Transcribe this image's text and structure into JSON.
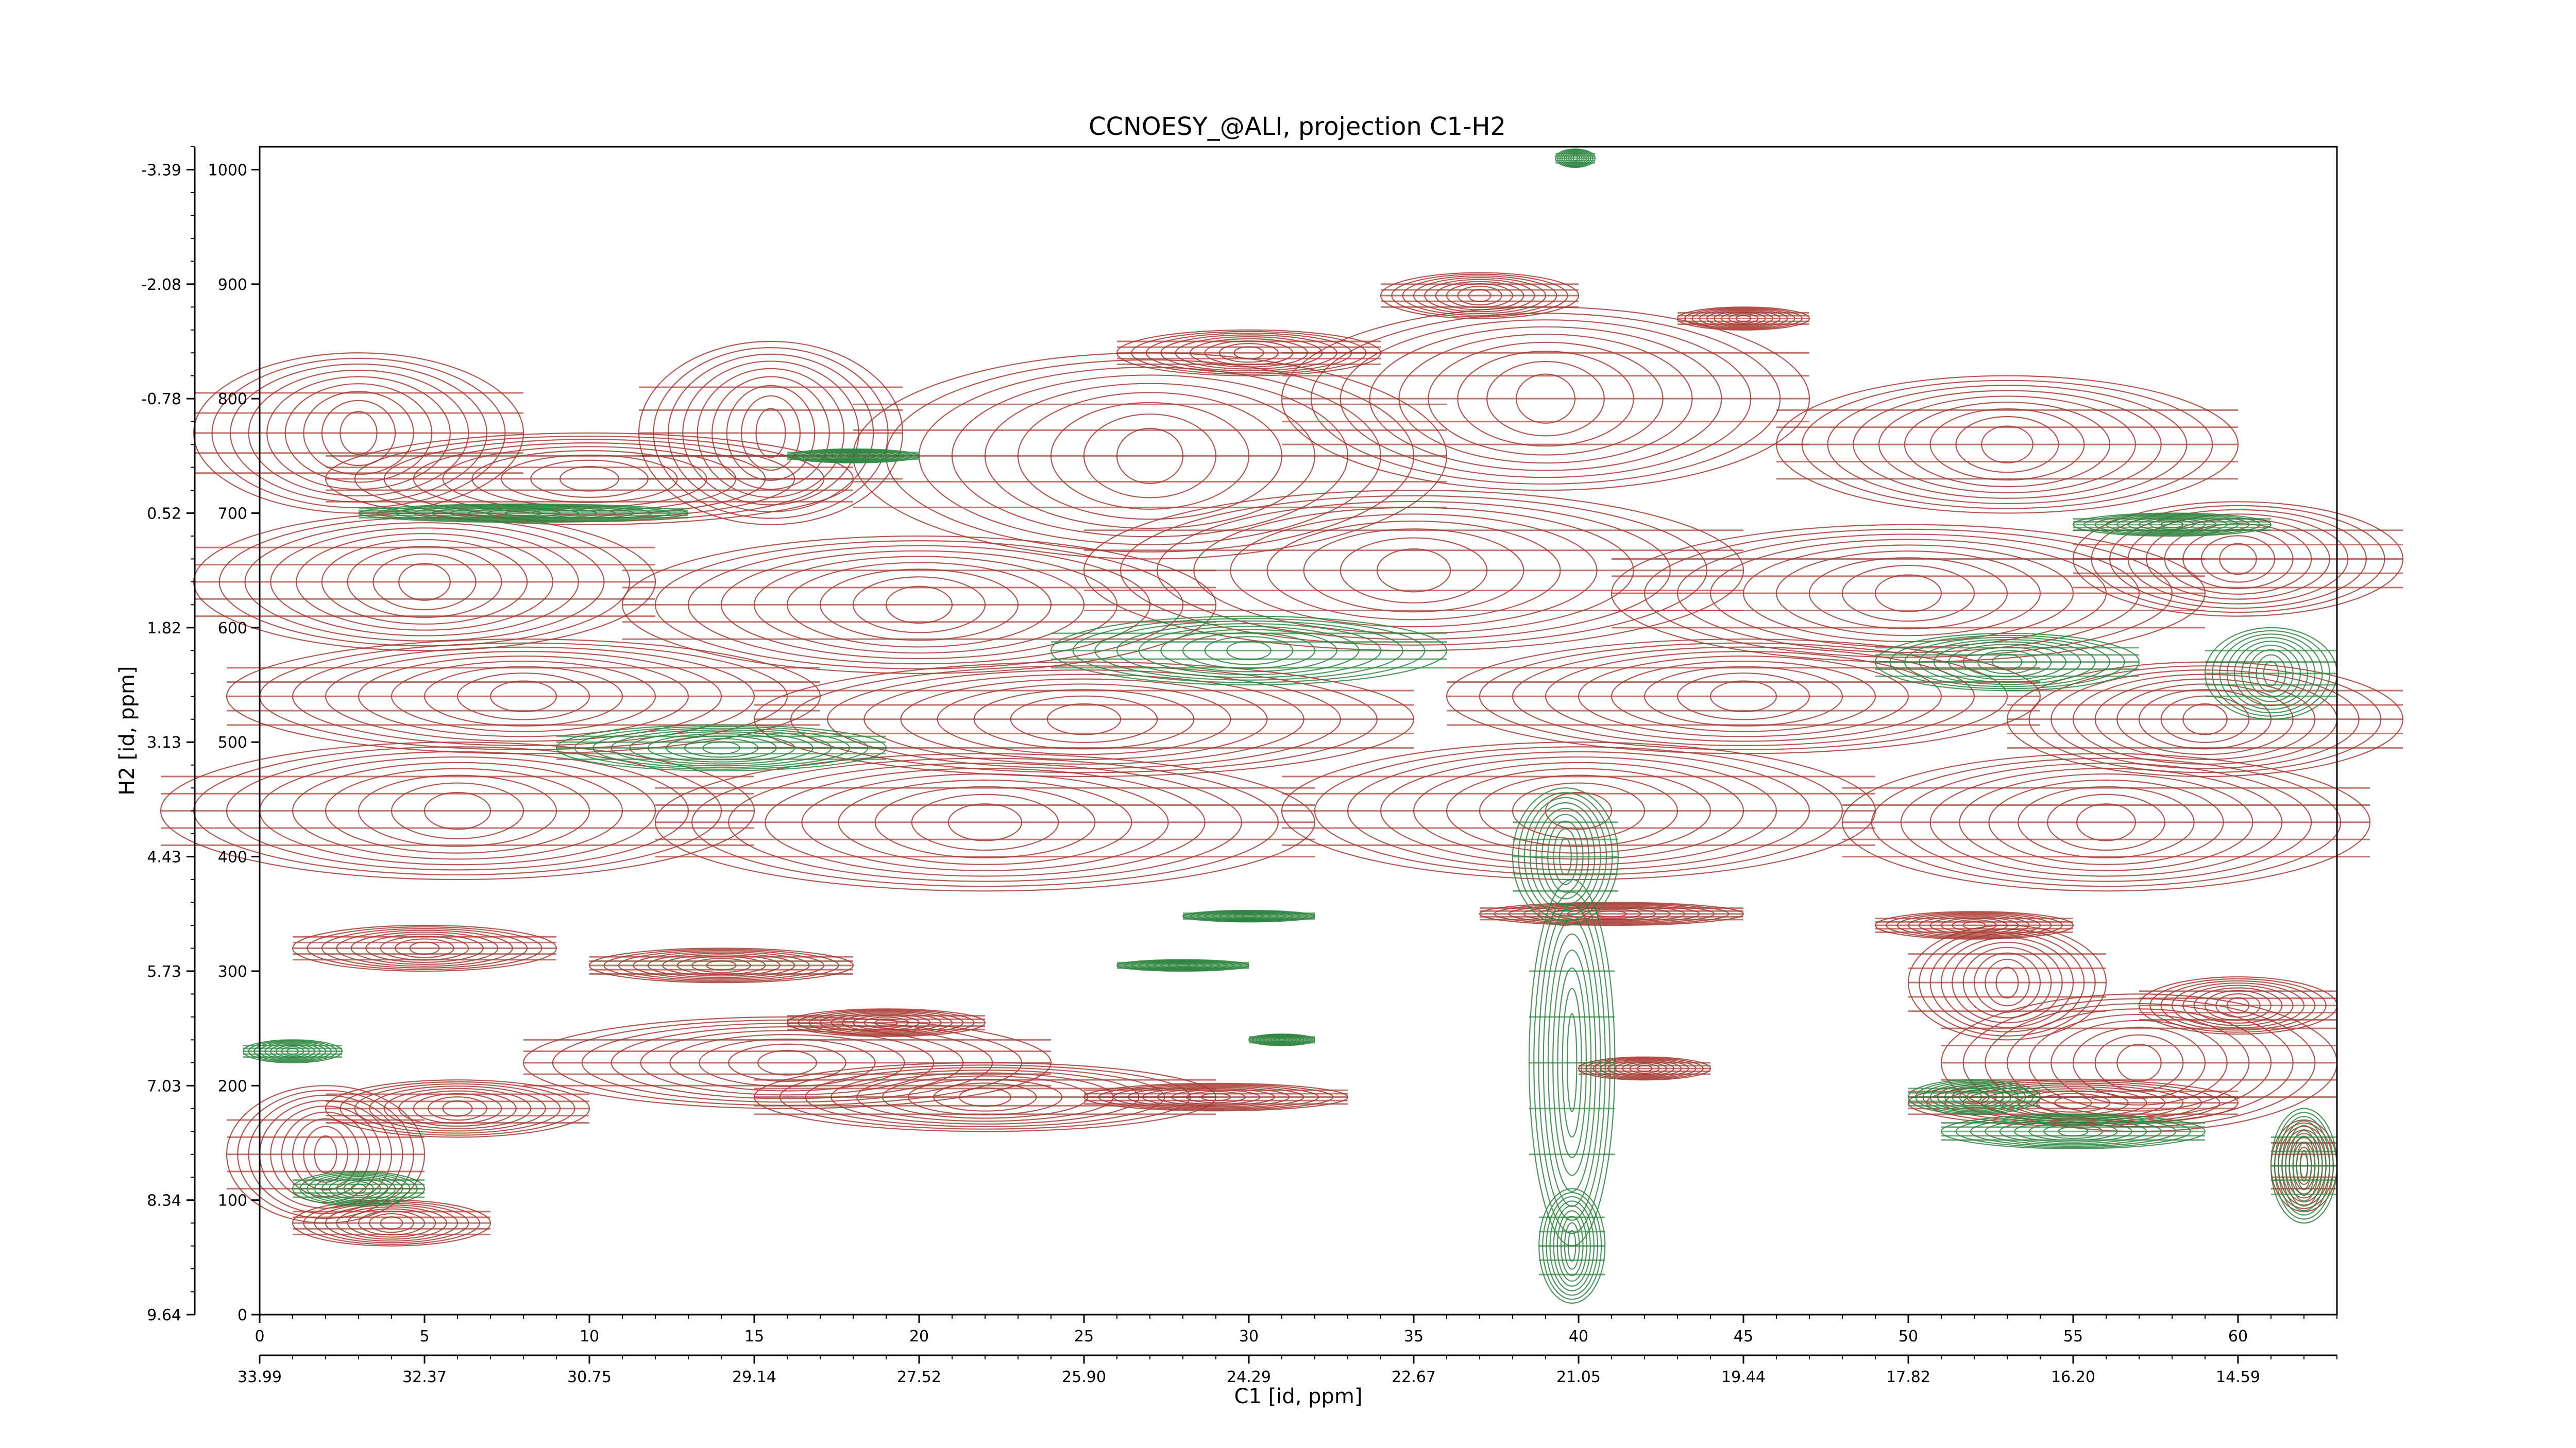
{
  "chart_data": {
    "type": "contour",
    "title": "CCNOESY_@ALI, projection C1-H2",
    "xlabel": "C1 [id, ppm]",
    "ylabel": "H2 [id, ppm]",
    "x_index_ticks": [
      "0",
      "5",
      "10",
      "15",
      "20",
      "25",
      "30",
      "35",
      "40",
      "45",
      "50",
      "55",
      "60"
    ],
    "x_ppm_ticks": [
      "33.99",
      "32.37",
      "30.75",
      "29.14",
      "27.52",
      "25.90",
      "24.29",
      "22.67",
      "21.05",
      "19.44",
      "17.82",
      "16.20",
      "14.59"
    ],
    "y_index_ticks": [
      "0",
      "100",
      "200",
      "300",
      "400",
      "500",
      "600",
      "700",
      "800",
      "900",
      "1000"
    ],
    "y_ppm_ticks": [
      "9.64",
      "8.34",
      "7.03",
      "5.73",
      "4.43",
      "3.13",
      "1.82",
      "0.52",
      "-0.78",
      "-2.08",
      "-3.39"
    ],
    "xlim": [
      0,
      63
    ],
    "ylim": [
      0,
      1020
    ],
    "colors": {
      "positive": "#a83a32",
      "negative": "#2e8540"
    },
    "positive_peaks": [
      {
        "x": 3,
        "y": 770,
        "wx": 5,
        "wy": 70
      },
      {
        "x": 10,
        "y": 730,
        "wx": 8,
        "wy": 40
      },
      {
        "x": 15.5,
        "y": 770,
        "wx": 4,
        "wy": 80
      },
      {
        "x": 27,
        "y": 750,
        "wx": 9,
        "wy": 90
      },
      {
        "x": 39,
        "y": 800,
        "wx": 8,
        "wy": 80
      },
      {
        "x": 53,
        "y": 760,
        "wx": 7,
        "wy": 60
      },
      {
        "x": 5,
        "y": 640,
        "wx": 7,
        "wy": 60
      },
      {
        "x": 20,
        "y": 620,
        "wx": 9,
        "wy": 60
      },
      {
        "x": 35,
        "y": 650,
        "wx": 10,
        "wy": 70
      },
      {
        "x": 50,
        "y": 630,
        "wx": 9,
        "wy": 60
      },
      {
        "x": 60,
        "y": 660,
        "wx": 5,
        "wy": 50
      },
      {
        "x": 8,
        "y": 540,
        "wx": 9,
        "wy": 50
      },
      {
        "x": 25,
        "y": 520,
        "wx": 10,
        "wy": 50
      },
      {
        "x": 45,
        "y": 540,
        "wx": 9,
        "wy": 50
      },
      {
        "x": 59,
        "y": 520,
        "wx": 6,
        "wy": 50
      },
      {
        "x": 6,
        "y": 440,
        "wx": 9,
        "wy": 60
      },
      {
        "x": 22,
        "y": 430,
        "wx": 10,
        "wy": 60
      },
      {
        "x": 40,
        "y": 440,
        "wx": 9,
        "wy": 60
      },
      {
        "x": 56,
        "y": 430,
        "wx": 8,
        "wy": 60
      },
      {
        "x": 5,
        "y": 320,
        "wx": 4,
        "wy": 20
      },
      {
        "x": 14,
        "y": 305,
        "wx": 4,
        "wy": 15
      },
      {
        "x": 19,
        "y": 255,
        "wx": 3,
        "wy": 12
      },
      {
        "x": 16,
        "y": 220,
        "wx": 8,
        "wy": 40
      },
      {
        "x": 22,
        "y": 190,
        "wx": 7,
        "wy": 30
      },
      {
        "x": 29,
        "y": 190,
        "wx": 4,
        "wy": 12
      },
      {
        "x": 6,
        "y": 180,
        "wx": 4,
        "wy": 25
      },
      {
        "x": 2,
        "y": 140,
        "wx": 3,
        "wy": 60
      },
      {
        "x": 4,
        "y": 80,
        "wx": 3,
        "wy": 20
      },
      {
        "x": 42,
        "y": 215,
        "wx": 2,
        "wy": 10
      },
      {
        "x": 53,
        "y": 290,
        "wx": 3,
        "wy": 50
      },
      {
        "x": 57,
        "y": 220,
        "wx": 6,
        "wy": 60
      },
      {
        "x": 60,
        "y": 270,
        "wx": 3,
        "wy": 25
      },
      {
        "x": 55,
        "y": 185,
        "wx": 5,
        "wy": 20
      },
      {
        "x": 52,
        "y": 340,
        "wx": 3,
        "wy": 12
      },
      {
        "x": 41,
        "y": 350,
        "wx": 4,
        "wy": 10
      },
      {
        "x": 37,
        "y": 890,
        "wx": 3,
        "wy": 20
      },
      {
        "x": 45,
        "y": 870,
        "wx": 2,
        "wy": 10
      },
      {
        "x": 30,
        "y": 840,
        "wx": 4,
        "wy": 20
      },
      {
        "x": 62,
        "y": 130,
        "wx": 1,
        "wy": 40
      }
    ],
    "negative_peaks": [
      {
        "x": 39.8,
        "y": 220,
        "wx": 1.3,
        "wy": 160
      },
      {
        "x": 39.8,
        "y": 60,
        "wx": 1.0,
        "wy": 50
      },
      {
        "x": 39.6,
        "y": 400,
        "wx": 1.6,
        "wy": 60
      },
      {
        "x": 39.9,
        "y": 1010,
        "wx": 0.6,
        "wy": 8
      },
      {
        "x": 30,
        "y": 580,
        "wx": 6,
        "wy": 30
      },
      {
        "x": 14,
        "y": 495,
        "wx": 5,
        "wy": 20
      },
      {
        "x": 53,
        "y": 570,
        "wx": 4,
        "wy": 25
      },
      {
        "x": 52,
        "y": 190,
        "wx": 2,
        "wy": 15
      },
      {
        "x": 55,
        "y": 160,
        "wx": 4,
        "wy": 15
      },
      {
        "x": 62,
        "y": 130,
        "wx": 1,
        "wy": 50
      },
      {
        "x": 28,
        "y": 305,
        "wx": 2,
        "wy": 5
      },
      {
        "x": 31,
        "y": 240,
        "wx": 1,
        "wy": 5
      },
      {
        "x": 1,
        "y": 230,
        "wx": 1.5,
        "wy": 10
      },
      {
        "x": 3,
        "y": 110,
        "wx": 2,
        "wy": 15
      },
      {
        "x": 8,
        "y": 700,
        "wx": 5,
        "wy": 8
      },
      {
        "x": 18,
        "y": 750,
        "wx": 2,
        "wy": 6
      },
      {
        "x": 58,
        "y": 690,
        "wx": 3,
        "wy": 10
      },
      {
        "x": 30,
        "y": 348,
        "wx": 2,
        "wy": 5
      },
      {
        "x": 61,
        "y": 560,
        "wx": 2,
        "wy": 40
      }
    ]
  }
}
